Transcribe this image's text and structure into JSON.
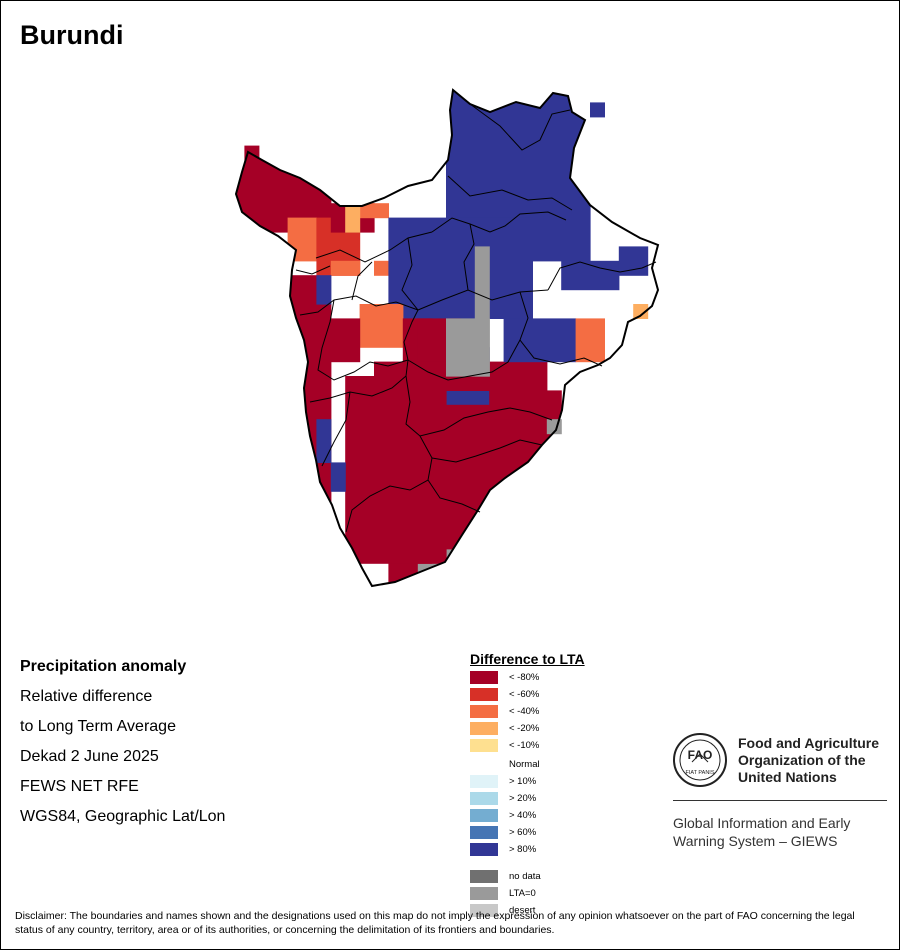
{
  "map": {
    "title": "Burundi",
    "colors": {
      "lt_-80": "#a50026",
      "lt_-60": "#d73027",
      "lt_-40": "#f46d43",
      "lt_-20": "#fdae61",
      "lt_-10": "#fee090",
      "normal": "#ffffff",
      "gt_10": "#e0f3f8",
      "gt_20": "#abd9e9",
      "gt_40": "#74add1",
      "gt_60": "#4575b4",
      "gt_80": "#313695",
      "no_data": "#707070",
      "lta0": "#9a9a9a",
      "desert": "#c8c8c8"
    }
  },
  "info": {
    "line1": "Precipitation anomaly",
    "line2": "Relative difference",
    "line3": "to Long Term Average",
    "line4": "Dekad 2 June 2025",
    "line5": "FEWS NET RFE",
    "line6": "WGS84, Geographic Lat/Lon"
  },
  "legend": {
    "title": "Difference to LTA",
    "items": [
      {
        "label": "< -80%",
        "color": "#a50026"
      },
      {
        "label": "< -60%",
        "color": "#d73027"
      },
      {
        "label": "< -40%",
        "color": "#f46d43"
      },
      {
        "label": "< -20%",
        "color": "#fdae61"
      },
      {
        "label": "< -10%",
        "color": "#fee090"
      },
      {
        "label": "Normal",
        "color": "#ffffff"
      },
      {
        "label": "> 10%",
        "color": "#e0f3f8"
      },
      {
        "label": "> 20%",
        "color": "#abd9e9"
      },
      {
        "label": "> 40%",
        "color": "#74add1"
      },
      {
        "label": "> 60%",
        "color": "#4575b4"
      },
      {
        "label": "> 80%",
        "color": "#313695"
      },
      {
        "label": "no data",
        "color": "#707070"
      },
      {
        "label": "LTA=0",
        "color": "#9a9a9a"
      },
      {
        "label": "desert",
        "color": "#c8c8c8"
      }
    ]
  },
  "fao": {
    "name_line1": "Food and Agriculture",
    "name_line2": "Organization of the",
    "name_line3": "United Nations",
    "giews_line1": "Global Information and Early",
    "giews_line2": "Warning System – GIEWS",
    "logo_word": "FAO",
    "logo_motto": "FIAT PANIS"
  },
  "disclaimer": "Disclaimer: The boundaries and names shown and the designations used on this map do not imply the expression of any opinion whatsoever on the part of FAO concerning the legal status of any country, territory, area or of its authorities, or concerning the delimitation of its frontiers and boundaries."
}
